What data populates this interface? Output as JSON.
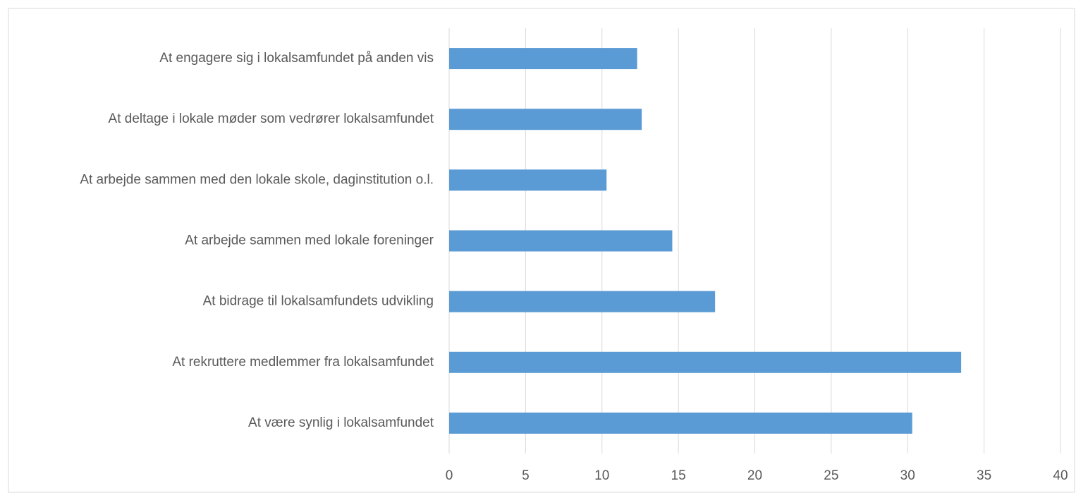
{
  "chart_data": {
    "type": "bar",
    "orientation": "horizontal",
    "categories": [
      "At engagere sig i lokalsamfundet på anden vis",
      "At deltage i lokale møder som vedrører lokalsamfundet",
      "At arbejde sammen med den lokale skole, daginstitution o.l.",
      "At arbejde sammen med lokale foreninger",
      "At bidrage til lokalsamfundets udvikling",
      "At rekruttere medlemmer fra lokalsamfundet",
      "At være synlig i lokalsamfundet"
    ],
    "values": [
      12.3,
      12.6,
      10.3,
      14.6,
      17.4,
      33.5,
      30.3
    ],
    "color": "#5b9bd5",
    "xlim": [
      0,
      40
    ],
    "xticks": [
      0,
      5,
      10,
      15,
      20,
      25,
      30,
      35,
      40
    ],
    "grid": true
  }
}
